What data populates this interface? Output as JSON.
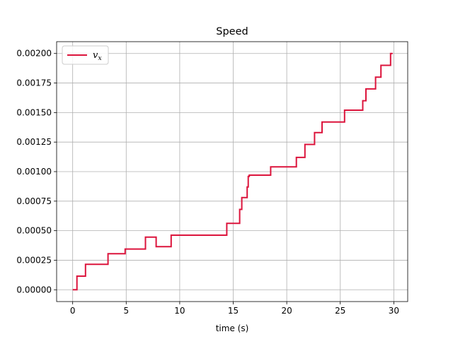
{
  "chart_data": {
    "type": "line",
    "title": "Speed",
    "xlabel": "time (s)",
    "ylabel": "",
    "xlim": [
      -1.5,
      31.3
    ],
    "ylim": [
      -0.0001,
      0.0021
    ],
    "x_ticks": [
      0,
      5,
      10,
      15,
      20,
      25,
      30
    ],
    "x_tick_labels": [
      "0",
      "5",
      "10",
      "15",
      "20",
      "25",
      "30"
    ],
    "y_ticks": [
      0,
      0.00025,
      0.0005,
      0.00075,
      0.001,
      0.00125,
      0.0015,
      0.00175,
      0.002
    ],
    "y_tick_labels": [
      "0.00000",
      "0.00025",
      "0.00050",
      "0.00075",
      "0.00100",
      "0.00125",
      "0.00150",
      "0.00175",
      "0.00200"
    ],
    "grid": true,
    "legend_position": "top-left",
    "step": "post",
    "series": [
      {
        "name": "v_x",
        "color": "#dc143c",
        "x": [
          0.0,
          0.4,
          1.2,
          3.3,
          4.9,
          6.8,
          7.8,
          9.2,
          14.4,
          15.6,
          15.8,
          16.3,
          16.4,
          16.5,
          18.5,
          20.9,
          21.7,
          22.6,
          23.3,
          25.4,
          27.1,
          27.4,
          28.3,
          28.8,
          29.7
        ],
        "y": [
          0.0,
          0.000115,
          0.000215,
          0.000305,
          0.000345,
          0.000445,
          0.000365,
          0.000462,
          0.000562,
          0.00068,
          0.00078,
          0.00087,
          0.00096,
          0.00097,
          0.00104,
          0.00112,
          0.00123,
          0.00133,
          0.00142,
          0.00152,
          0.0016,
          0.0017,
          0.0018,
          0.0019,
          0.002
        ]
      }
    ]
  }
}
